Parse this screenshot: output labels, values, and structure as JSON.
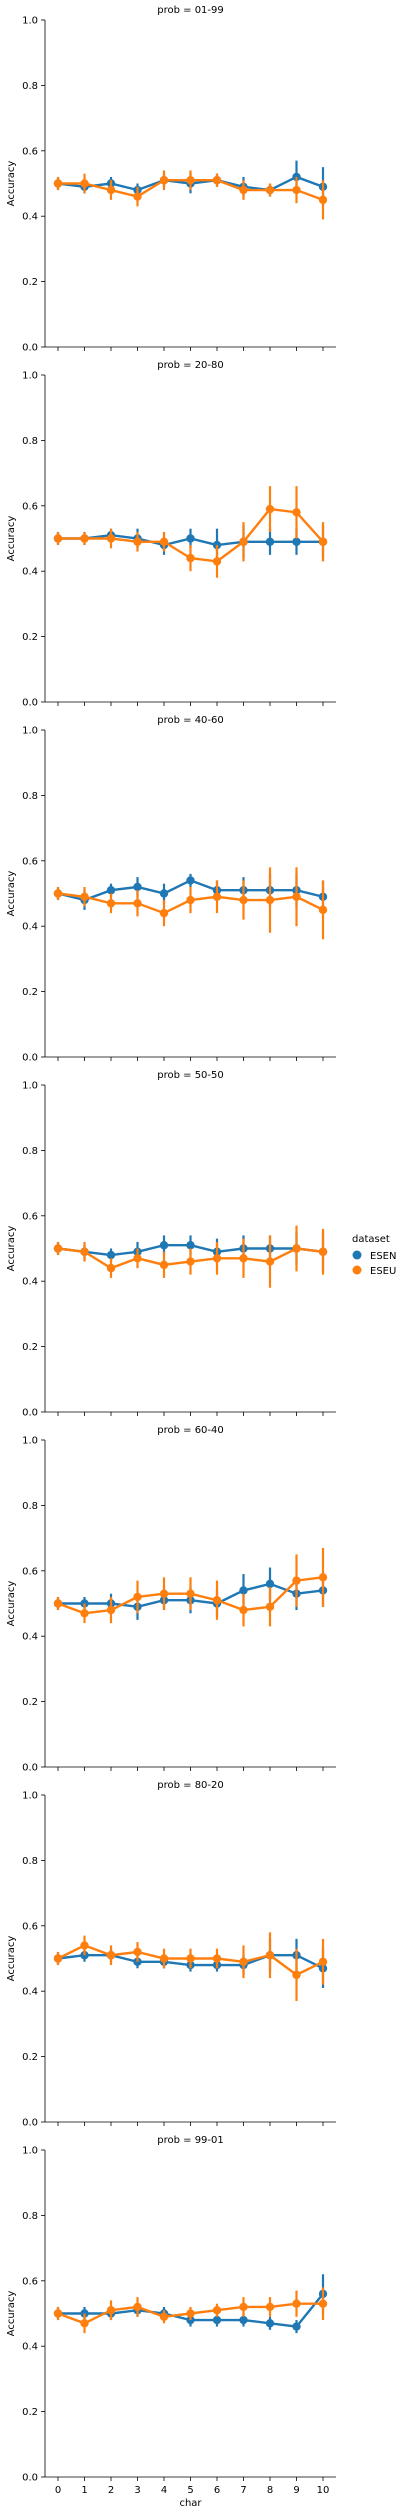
{
  "chart_data": {
    "type": "line",
    "x": [
      0,
      1,
      2,
      3,
      4,
      5,
      6,
      7,
      8,
      9,
      10
    ],
    "xlabel": "char",
    "ylabel": "Accuracy",
    "ylim": [
      0,
      1
    ],
    "yticks": [
      "0.0",
      "0.2",
      "0.4",
      "0.6",
      "0.8",
      "1.0"
    ],
    "xticks": [
      "0",
      "1",
      "2",
      "3",
      "4",
      "5",
      "6",
      "7",
      "8",
      "9",
      "10"
    ],
    "legend": {
      "title": "dataset",
      "placement": "right",
      "entries": [
        {
          "name": "ESEN",
          "color": "#1f77b4"
        },
        {
          "name": "ESEU",
          "color": "#ff7f0e"
        }
      ]
    },
    "panels": [
      {
        "title": "prob = 01-99",
        "series": [
          {
            "name": "ESEN",
            "values": [
              0.5,
              0.49,
              0.5,
              0.48,
              0.51,
              0.5,
              0.51,
              0.49,
              0.48,
              0.52,
              0.49
            ],
            "err": [
              0.02,
              0.02,
              0.02,
              0.02,
              0.02,
              0.03,
              0.02,
              0.03,
              0.02,
              0.05,
              0.06
            ]
          },
          {
            "name": "ESEU",
            "values": [
              0.5,
              0.5,
              0.48,
              0.46,
              0.51,
              0.51,
              0.51,
              0.48,
              0.48,
              0.48,
              0.45
            ],
            "err": [
              0.02,
              0.03,
              0.03,
              0.03,
              0.03,
              0.03,
              0.02,
              0.03,
              0.02,
              0.04,
              0.06
            ]
          }
        ]
      },
      {
        "title": "prob = 20-80",
        "series": [
          {
            "name": "ESEN",
            "values": [
              0.5,
              0.5,
              0.51,
              0.5,
              0.48,
              0.5,
              0.48,
              0.49,
              0.49,
              0.49,
              0.49
            ],
            "err": [
              0.02,
              0.02,
              0.02,
              0.03,
              0.03,
              0.03,
              0.05,
              0.05,
              0.04,
              0.04,
              0.05
            ]
          },
          {
            "name": "ESEU",
            "values": [
              0.5,
              0.5,
              0.5,
              0.49,
              0.49,
              0.44,
              0.43,
              0.49,
              0.59,
              0.58,
              0.49
            ],
            "err": [
              0.02,
              0.02,
              0.03,
              0.03,
              0.03,
              0.04,
              0.05,
              0.06,
              0.07,
              0.08,
              0.06
            ]
          }
        ]
      },
      {
        "title": "prob = 40-60",
        "series": [
          {
            "name": "ESEN",
            "values": [
              0.5,
              0.48,
              0.51,
              0.52,
              0.5,
              0.54,
              0.51,
              0.51,
              0.51,
              0.51,
              0.49
            ],
            "err": [
              0.02,
              0.03,
              0.02,
              0.03,
              0.03,
              0.02,
              0.03,
              0.04,
              0.05,
              0.05,
              0.05
            ]
          },
          {
            "name": "ESEU",
            "values": [
              0.5,
              0.49,
              0.47,
              0.47,
              0.44,
              0.48,
              0.49,
              0.48,
              0.48,
              0.49,
              0.45
            ],
            "err": [
              0.02,
              0.03,
              0.03,
              0.04,
              0.04,
              0.04,
              0.05,
              0.06,
              0.1,
              0.09,
              0.09
            ]
          }
        ]
      },
      {
        "title": "prob = 50-50",
        "series": [
          {
            "name": "ESEN",
            "values": [
              0.5,
              0.49,
              0.48,
              0.49,
              0.51,
              0.51,
              0.49,
              0.5,
              0.5,
              0.5,
              0.49
            ],
            "err": [
              0.02,
              0.02,
              0.02,
              0.03,
              0.03,
              0.03,
              0.04,
              0.04,
              0.04,
              0.05,
              0.06
            ]
          },
          {
            "name": "ESEU",
            "values": [
              0.5,
              0.49,
              0.44,
              0.47,
              0.45,
              0.46,
              0.47,
              0.47,
              0.46,
              0.5,
              0.49
            ],
            "err": [
              0.02,
              0.03,
              0.03,
              0.03,
              0.04,
              0.04,
              0.05,
              0.06,
              0.08,
              0.07,
              0.07
            ]
          }
        ]
      },
      {
        "title": "prob = 60-40",
        "series": [
          {
            "name": "ESEN",
            "values": [
              0.5,
              0.5,
              0.5,
              0.49,
              0.51,
              0.51,
              0.5,
              0.54,
              0.56,
              0.53,
              0.54
            ],
            "err": [
              0.02,
              0.02,
              0.03,
              0.04,
              0.03,
              0.04,
              0.04,
              0.05,
              0.05,
              0.05,
              0.05
            ]
          },
          {
            "name": "ESEU",
            "values": [
              0.5,
              0.47,
              0.48,
              0.52,
              0.53,
              0.53,
              0.51,
              0.48,
              0.49,
              0.57,
              0.58
            ],
            "err": [
              0.02,
              0.03,
              0.04,
              0.05,
              0.05,
              0.05,
              0.06,
              0.05,
              0.06,
              0.08,
              0.09
            ]
          }
        ]
      },
      {
        "title": "prob = 80-20",
        "series": [
          {
            "name": "ESEN",
            "values": [
              0.5,
              0.51,
              0.51,
              0.49,
              0.49,
              0.48,
              0.48,
              0.48,
              0.51,
              0.51,
              0.47
            ],
            "err": [
              0.02,
              0.02,
              0.02,
              0.02,
              0.02,
              0.02,
              0.02,
              0.03,
              0.05,
              0.05,
              0.06
            ]
          },
          {
            "name": "ESEU",
            "values": [
              0.5,
              0.54,
              0.51,
              0.52,
              0.5,
              0.5,
              0.5,
              0.49,
              0.51,
              0.45,
              0.49
            ],
            "err": [
              0.02,
              0.03,
              0.03,
              0.03,
              0.03,
              0.03,
              0.03,
              0.05,
              0.07,
              0.08,
              0.07
            ]
          }
        ]
      },
      {
        "title": "prob = 99-01",
        "series": [
          {
            "name": "ESEN",
            "values": [
              0.5,
              0.5,
              0.5,
              0.51,
              0.5,
              0.48,
              0.48,
              0.48,
              0.47,
              0.46,
              0.56
            ],
            "err": [
              0.02,
              0.02,
              0.02,
              0.02,
              0.02,
              0.02,
              0.02,
              0.02,
              0.02,
              0.02,
              0.06
            ]
          },
          {
            "name": "ESEU",
            "values": [
              0.5,
              0.47,
              0.51,
              0.52,
              0.49,
              0.5,
              0.51,
              0.52,
              0.52,
              0.53,
              0.53
            ],
            "err": [
              0.02,
              0.03,
              0.03,
              0.03,
              0.02,
              0.02,
              0.02,
              0.03,
              0.03,
              0.04,
              0.05
            ]
          }
        ]
      }
    ]
  }
}
